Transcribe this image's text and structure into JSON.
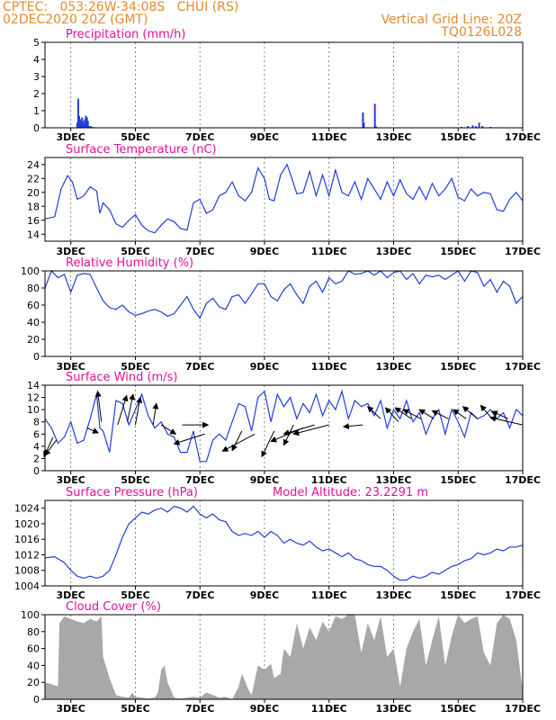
{
  "header": {
    "line1_left": "CPTEC:   053:26W-34:08S   CHUI (RS)",
    "line2_left": "02DEC2020 20Z (GMT)",
    "line2_right": "Vertical Grid Line: 20Z",
    "line3_right": "TQ0126L028"
  },
  "colors": {
    "header": "#e8892b",
    "title": "#e0109a",
    "series": "#1f3fd9",
    "cloud": "#a8a8a8",
    "wind_arrow": "#000000"
  },
  "chart_data": [
    {
      "type": "bar",
      "title": "Precipitation (mm/h)",
      "unit": "mm/h",
      "ylim": [
        0,
        5
      ],
      "yticks": [
        0,
        1,
        2,
        3,
        4,
        5
      ],
      "xlim": [
        2.2,
        17.0
      ],
      "x_tick_labels": [
        "3DEC",
        "5DEC",
        "7DEC",
        "9DEC",
        "11DEC",
        "13DEC",
        "15DEC",
        "17DEC"
      ],
      "x_tick_values": [
        3,
        5,
        7,
        9,
        11,
        13,
        15,
        17
      ],
      "x": [
        3.2,
        3.23,
        3.26,
        3.29,
        3.32,
        3.35,
        3.38,
        3.41,
        3.44,
        3.47,
        3.5,
        3.53,
        3.56,
        3.62,
        3.7,
        12.05,
        12.08,
        12.42,
        12.45,
        12.9,
        13.2,
        13.6,
        14.0,
        14.5,
        14.9,
        15.1,
        15.3,
        15.45,
        15.55,
        15.65,
        15.75,
        16.0,
        16.3,
        16.6,
        16.9
      ],
      "values": [
        0.3,
        1.7,
        0.7,
        0.5,
        0.3,
        0.6,
        0.4,
        0.2,
        0.5,
        0.7,
        0.6,
        0.4,
        0.1,
        0.1,
        0.05,
        0.9,
        0.3,
        1.4,
        0.1,
        0.02,
        0.02,
        0.02,
        0.02,
        0.02,
        0.03,
        0.05,
        0.1,
        0.15,
        0.1,
        0.3,
        0.1,
        0.05,
        0.03,
        0.02,
        0.02
      ]
    },
    {
      "type": "line",
      "title": "Surface Temperature (nC)",
      "unit": "nC",
      "ylim": [
        13,
        25
      ],
      "yticks": [
        14,
        16,
        18,
        20,
        22,
        24
      ],
      "xlim": [
        2.2,
        17.0
      ],
      "x_tick_labels": [
        "3DEC",
        "5DEC",
        "7DEC",
        "9DEC",
        "11DEC",
        "13DEC",
        "15DEC",
        "17DEC"
      ],
      "x_tick_values": [
        3,
        5,
        7,
        9,
        11,
        13,
        15,
        17
      ],
      "x": [
        2.2,
        2.5,
        2.7,
        2.9,
        3.05,
        3.2,
        3.4,
        3.6,
        3.8,
        3.9,
        4.0,
        4.2,
        4.4,
        4.6,
        4.8,
        5.0,
        5.2,
        5.4,
        5.6,
        5.8,
        6.0,
        6.2,
        6.4,
        6.6,
        6.8,
        7.0,
        7.2,
        7.4,
        7.6,
        7.8,
        8.0,
        8.2,
        8.4,
        8.6,
        8.8,
        9.0,
        9.15,
        9.3,
        9.5,
        9.7,
        9.85,
        10.0,
        10.2,
        10.4,
        10.6,
        10.8,
        11.0,
        11.2,
        11.4,
        11.6,
        11.8,
        12.0,
        12.2,
        12.4,
        12.6,
        12.8,
        13.0,
        13.2,
        13.4,
        13.6,
        13.8,
        14.0,
        14.2,
        14.4,
        14.6,
        14.8,
        15.0,
        15.2,
        15.4,
        15.6,
        15.8,
        16.0,
        16.2,
        16.4,
        16.6,
        16.8,
        17.0
      ],
      "values": [
        16.2,
        16.5,
        20.5,
        22.4,
        21.5,
        19.0,
        19.5,
        20.8,
        20.2,
        17.0,
        18.5,
        17.5,
        15.5,
        15.0,
        16.0,
        16.8,
        15.3,
        14.5,
        14.2,
        15.3,
        16.2,
        15.8,
        14.8,
        14.6,
        18.5,
        19.0,
        17.0,
        17.5,
        19.5,
        20.0,
        21.5,
        19.5,
        18.8,
        20.0,
        23.5,
        22.0,
        19.0,
        18.8,
        22.5,
        24.0,
        22.0,
        19.8,
        20.0,
        23.0,
        19.5,
        22.5,
        19.5,
        23.2,
        20.0,
        19.5,
        21.5,
        19.0,
        22.0,
        20.5,
        19.0,
        21.5,
        19.5,
        21.8,
        19.8,
        19.0,
        20.8,
        19.0,
        21.3,
        19.5,
        20.5,
        22.0,
        19.3,
        18.8,
        20.5,
        19.5,
        20.0,
        19.8,
        17.5,
        17.3,
        19.0,
        20.0,
        18.8
      ]
    },
    {
      "type": "line",
      "title": "Relative Humidity (%)",
      "unit": "%",
      "ylim": [
        0,
        100
      ],
      "yticks": [
        0,
        20,
        40,
        60,
        80,
        100
      ],
      "xlim": [
        2.2,
        17.0
      ],
      "x_tick_labels": [
        "3DEC",
        "5DEC",
        "7DEC",
        "9DEC",
        "11DEC",
        "13DEC",
        "15DEC",
        "17DEC"
      ],
      "x_tick_values": [
        3,
        5,
        7,
        9,
        11,
        13,
        15,
        17
      ],
      "x": [
        2.2,
        2.4,
        2.6,
        2.8,
        3.0,
        3.2,
        3.4,
        3.6,
        3.8,
        4.0,
        4.2,
        4.4,
        4.6,
        4.8,
        5.0,
        5.2,
        5.4,
        5.6,
        5.8,
        6.0,
        6.2,
        6.4,
        6.6,
        6.8,
        7.0,
        7.2,
        7.4,
        7.6,
        7.8,
        8.0,
        8.2,
        8.4,
        8.6,
        8.8,
        9.0,
        9.2,
        9.4,
        9.6,
        9.8,
        10.0,
        10.2,
        10.4,
        10.6,
        10.8,
        11.0,
        11.2,
        11.4,
        11.6,
        11.8,
        12.0,
        12.2,
        12.4,
        12.6,
        12.8,
        13.0,
        13.2,
        13.4,
        13.6,
        13.8,
        14.0,
        14.2,
        14.4,
        14.6,
        14.8,
        15.0,
        15.2,
        15.4,
        15.6,
        15.8,
        16.0,
        16.2,
        16.4,
        16.6,
        16.8,
        17.0
      ],
      "values": [
        80,
        100,
        92,
        96,
        75,
        95,
        97,
        96,
        80,
        65,
        57,
        55,
        60,
        52,
        48,
        50,
        53,
        55,
        52,
        47,
        50,
        60,
        70,
        55,
        45,
        62,
        68,
        58,
        55,
        70,
        72,
        62,
        73,
        85,
        85,
        70,
        65,
        78,
        85,
        72,
        62,
        82,
        88,
        75,
        92,
        85,
        88,
        100,
        96,
        97,
        100,
        95,
        100,
        92,
        98,
        100,
        90,
        97,
        85,
        95,
        93,
        95,
        90,
        95,
        100,
        88,
        100,
        98,
        82,
        90,
        75,
        88,
        82,
        62,
        70
      ]
    },
    {
      "type": "line",
      "title": "Surface Wind (m/s)",
      "unit": "m/s",
      "ylim": [
        0,
        14
      ],
      "yticks": [
        0,
        2,
        4,
        6,
        8,
        10,
        12,
        14
      ],
      "xlim": [
        2.2,
        17.0
      ],
      "x_tick_labels": [
        "3DEC",
        "5DEC",
        "7DEC",
        "9DEC",
        "11DEC",
        "13DEC",
        "15DEC",
        "17DEC"
      ],
      "x_tick_values": [
        3,
        5,
        7,
        9,
        11,
        13,
        15,
        17
      ],
      "x": [
        2.2,
        2.4,
        2.6,
        2.8,
        3.0,
        3.2,
        3.4,
        3.6,
        3.8,
        3.9,
        4.0,
        4.2,
        4.4,
        4.6,
        4.8,
        5.0,
        5.2,
        5.4,
        5.6,
        5.8,
        6.0,
        6.2,
        6.4,
        6.6,
        6.8,
        7.0,
        7.2,
        7.4,
        7.6,
        7.8,
        8.0,
        8.2,
        8.4,
        8.6,
        8.8,
        9.0,
        9.2,
        9.4,
        9.6,
        9.8,
        10.0,
        10.2,
        10.4,
        10.6,
        10.8,
        11.0,
        11.2,
        11.4,
        11.6,
        11.8,
        12.0,
        12.2,
        12.4,
        12.6,
        12.8,
        13.0,
        13.2,
        13.4,
        13.6,
        13.8,
        14.0,
        14.2,
        14.4,
        14.6,
        14.8,
        15.0,
        15.2,
        15.4,
        15.6,
        15.8,
        16.0,
        16.2,
        16.4,
        16.6,
        16.8,
        17.0
      ],
      "values": [
        8.5,
        7.0,
        4.5,
        5.5,
        8.0,
        4.5,
        5.0,
        8.5,
        12.5,
        7.0,
        6.5,
        3.0,
        11.5,
        11.0,
        7.5,
        10.0,
        12.5,
        9.0,
        7.0,
        8.0,
        6.0,
        5.5,
        3.0,
        3.0,
        6.5,
        1.5,
        1.5,
        5.0,
        6.0,
        5.0,
        8.0,
        11.0,
        10.5,
        6.5,
        12.0,
        13.0,
        8.0,
        12.5,
        10.5,
        12.0,
        8.5,
        11.0,
        9.5,
        12.5,
        9.0,
        11.5,
        10.0,
        13.0,
        8.5,
        11.5,
        10.5,
        11.0,
        9.0,
        11.5,
        7.0,
        10.0,
        8.5,
        11.5,
        8.0,
        9.5,
        6.0,
        8.5,
        10.0,
        6.0,
        10.0,
        8.0,
        5.5,
        9.5,
        8.5,
        9.0,
        10.0,
        8.5,
        9.5,
        7.0,
        10.0,
        9.0
      ],
      "wind_arrows": [
        {
          "x": 2.45,
          "s": 5.5,
          "dx": -0.28,
          "dy": -3.2
        },
        {
          "x": 2.55,
          "s": 5.0,
          "dx": -0.35,
          "dy": -2.5
        },
        {
          "x": 3.5,
          "s": 7.0,
          "dx": 0.35,
          "dy": -0.8
        },
        {
          "x": 3.95,
          "s": 8.0,
          "dx": -0.12,
          "dy": 5.0
        },
        {
          "x": 4.45,
          "s": 7.5,
          "dx": 0.28,
          "dy": 4.8
        },
        {
          "x": 4.75,
          "s": 8.0,
          "dx": 0.18,
          "dy": 4.5
        },
        {
          "x": 5.0,
          "s": 7.5,
          "dx": 0.15,
          "dy": 4.5
        },
        {
          "x": 5.55,
          "s": 7.5,
          "dx": 0.1,
          "dy": 3.5
        },
        {
          "x": 5.8,
          "s": 7.5,
          "dx": 0.45,
          "dy": -1.5
        },
        {
          "x": 6.45,
          "s": 7.5,
          "dx": 0.8,
          "dy": 0.0
        },
        {
          "x": 7.15,
          "s": 6.0,
          "dx": -0.95,
          "dy": -1.6
        },
        {
          "x": 8.3,
          "s": 6.5,
          "dx": -0.3,
          "dy": -3.2
        },
        {
          "x": 8.7,
          "s": 6.0,
          "dx": -1.0,
          "dy": -2.8
        },
        {
          "x": 9.3,
          "s": 6.5,
          "dx": -0.38,
          "dy": -4.2
        },
        {
          "x": 9.9,
          "s": 7.5,
          "dx": -0.3,
          "dy": -3.3
        },
        {
          "x": 10.2,
          "s": 7.0,
          "dx": -1.0,
          "dy": -2.2
        },
        {
          "x": 10.55,
          "s": 7.5,
          "dx": -0.95,
          "dy": -1.5
        },
        {
          "x": 11.0,
          "s": 7.5,
          "dx": -1.1,
          "dy": -1.5
        },
        {
          "x": 12.05,
          "s": 7.5,
          "dx": -0.6,
          "dy": -0.3
        },
        {
          "x": 12.6,
          "s": 8.5,
          "dx": -0.4,
          "dy": 2.0
        },
        {
          "x": 13.15,
          "s": 8.0,
          "dx": -0.4,
          "dy": 2.3
        },
        {
          "x": 13.55,
          "s": 8.5,
          "dx": -0.5,
          "dy": 1.8
        },
        {
          "x": 13.85,
          "s": 8.5,
          "dx": -0.55,
          "dy": 1.5
        },
        {
          "x": 14.25,
          "s": 8.5,
          "dx": -0.45,
          "dy": 1.5
        },
        {
          "x": 14.7,
          "s": 8.5,
          "dx": -0.5,
          "dy": 1.3
        },
        {
          "x": 15.25,
          "s": 8.5,
          "dx": -0.4,
          "dy": 1.5
        },
        {
          "x": 15.6,
          "s": 8.5,
          "dx": -0.45,
          "dy": 2.0
        },
        {
          "x": 16.05,
          "s": 8.5,
          "dx": -0.35,
          "dy": 2.2
        },
        {
          "x": 16.55,
          "s": 8.5,
          "dx": -0.5,
          "dy": 1.2
        },
        {
          "x": 17.0,
          "s": 7.5,
          "dx": -1.0,
          "dy": 1.2
        }
      ]
    },
    {
      "type": "line",
      "title": "Surface Pressure (hPa)",
      "subtitle": "Model Altitude: 23.2291 m",
      "unit": "hPa",
      "ylim": [
        1004,
        1026
      ],
      "yticks": [
        1004,
        1008,
        1012,
        1016,
        1020,
        1024
      ],
      "xlim": [
        2.2,
        17.0
      ],
      "x_tick_labels": [
        "3DEC",
        "5DEC",
        "7DEC",
        "9DEC",
        "11DEC",
        "13DEC",
        "15DEC",
        "17DEC"
      ],
      "x_tick_values": [
        3,
        5,
        7,
        9,
        11,
        13,
        15,
        17
      ],
      "x": [
        2.2,
        2.5,
        2.8,
        3.0,
        3.2,
        3.4,
        3.6,
        3.8,
        4.0,
        4.2,
        4.4,
        4.6,
        4.8,
        5.0,
        5.2,
        5.4,
        5.6,
        5.8,
        6.0,
        6.2,
        6.4,
        6.6,
        6.8,
        7.0,
        7.2,
        7.4,
        7.6,
        7.8,
        8.0,
        8.2,
        8.4,
        8.6,
        8.8,
        9.0,
        9.2,
        9.4,
        9.6,
        9.8,
        10.0,
        10.2,
        10.4,
        10.6,
        10.8,
        11.0,
        11.2,
        11.4,
        11.6,
        11.8,
        12.0,
        12.2,
        12.4,
        12.6,
        12.8,
        13.0,
        13.2,
        13.4,
        13.6,
        13.8,
        14.0,
        14.2,
        14.4,
        14.6,
        14.8,
        15.0,
        15.2,
        15.4,
        15.6,
        15.8,
        16.0,
        16.2,
        16.4,
        16.6,
        16.8,
        17.0
      ],
      "values": [
        1011.2,
        1011.5,
        1010.0,
        1008.0,
        1006.5,
        1006.0,
        1006.5,
        1006.0,
        1006.5,
        1008.0,
        1012.0,
        1016.5,
        1020.0,
        1021.5,
        1023.0,
        1022.5,
        1023.5,
        1024.0,
        1023.0,
        1024.5,
        1024.0,
        1023.0,
        1024.5,
        1022.5,
        1021.5,
        1022.5,
        1021.0,
        1020.5,
        1018.0,
        1017.0,
        1017.5,
        1017.0,
        1018.0,
        1016.5,
        1018.0,
        1017.0,
        1015.0,
        1016.0,
        1015.0,
        1014.5,
        1015.5,
        1014.0,
        1013.0,
        1013.5,
        1012.5,
        1011.5,
        1012.5,
        1011.0,
        1010.5,
        1009.5,
        1009.0,
        1009.0,
        1008.0,
        1006.5,
        1005.5,
        1005.5,
        1006.5,
        1006.0,
        1006.5,
        1007.5,
        1007.0,
        1008.0,
        1009.0,
        1009.5,
        1010.5,
        1011.0,
        1012.5,
        1012.0,
        1012.5,
        1013.5,
        1013.0,
        1014.0,
        1014.0,
        1014.5
      ]
    },
    {
      "type": "area",
      "title": "Cloud Cover (%)",
      "unit": "%",
      "ylim": [
        0,
        100
      ],
      "yticks": [
        0,
        20,
        40,
        60,
        80,
        100
      ],
      "xlim": [
        2.2,
        17.0
      ],
      "x_tick_labels": [
        "3DEC",
        "5DEC",
        "7DEC",
        "9DEC",
        "11DEC",
        "13DEC",
        "15DEC",
        "17DEC"
      ],
      "x_tick_values": [
        3,
        5,
        7,
        9,
        11,
        13,
        15,
        17
      ],
      "x": [
        2.2,
        2.4,
        2.6,
        2.65,
        2.8,
        3.0,
        3.2,
        3.4,
        3.6,
        3.8,
        3.95,
        4.0,
        4.2,
        4.4,
        4.6,
        4.8,
        4.9,
        5.0,
        5.2,
        5.4,
        5.6,
        5.7,
        5.8,
        5.9,
        6.0,
        6.2,
        6.4,
        6.6,
        6.8,
        7.0,
        7.2,
        7.4,
        7.6,
        7.8,
        8.0,
        8.2,
        8.3,
        8.5,
        8.6,
        8.8,
        9.0,
        9.2,
        9.3,
        9.5,
        9.6,
        9.8,
        10.0,
        10.2,
        10.4,
        10.6,
        10.8,
        11.0,
        11.2,
        11.4,
        11.6,
        11.8,
        12.0,
        12.2,
        12.4,
        12.6,
        12.8,
        13.0,
        13.2,
        13.4,
        13.6,
        13.8,
        14.0,
        14.2,
        14.4,
        14.6,
        14.8,
        15.0,
        15.2,
        15.4,
        15.6,
        15.8,
        16.0,
        16.2,
        16.4,
        16.6,
        16.8,
        17.0
      ],
      "values": [
        20,
        18,
        15,
        90,
        98,
        95,
        92,
        90,
        95,
        92,
        98,
        50,
        25,
        5,
        3,
        2,
        8,
        3,
        2,
        1,
        2,
        8,
        35,
        40,
        20,
        2,
        1,
        2,
        3,
        2,
        8,
        5,
        2,
        3,
        0,
        15,
        30,
        12,
        5,
        40,
        35,
        42,
        25,
        30,
        60,
        50,
        90,
        60,
        85,
        70,
        92,
        80,
        98,
        95,
        100,
        100,
        55,
        90,
        70,
        98,
        50,
        60,
        15,
        60,
        80,
        95,
        40,
        70,
        98,
        40,
        75,
        100,
        90,
        95,
        98,
        55,
        40,
        90,
        100,
        95,
        70,
        10
      ]
    }
  ]
}
